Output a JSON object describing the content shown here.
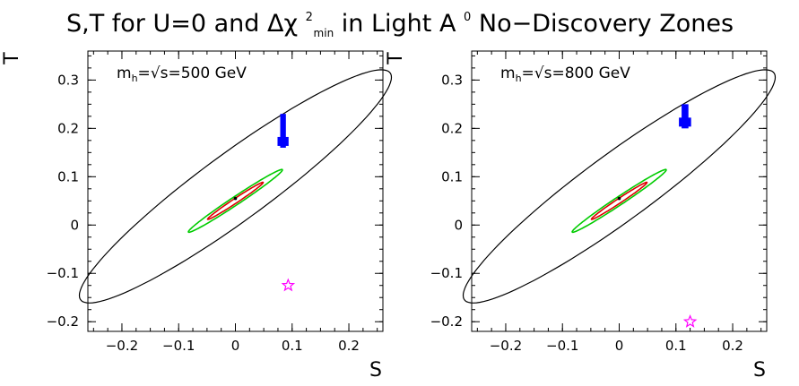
{
  "figure": {
    "title_main": "S,T for U=0 and Δχ",
    "title_sup": "2",
    "title_sub": "min",
    "title_rest": " in Light A",
    "title_sup2": "0",
    "title_end": " No−Discovery Zones"
  },
  "chart_data": [
    {
      "type": "scatter",
      "annotation": {
        "prefix": "m",
        "subscript": "h",
        "rest": "=√s=500 GeV"
      },
      "xlabel": "S",
      "ylabel": "T",
      "xlim": [
        -0.26,
        0.26
      ],
      "ylim": [
        -0.22,
        0.36
      ],
      "xticks": [
        -0.2,
        -0.1,
        0,
        0.1,
        0.2
      ],
      "xtick_labels": [
        "−0.2",
        "−0.1",
        "0",
        "0.1",
        "0.2"
      ],
      "yticks": [
        -0.2,
        -0.1,
        0,
        0.1,
        0.2,
        0.3
      ],
      "ytick_labels": [
        "−0.2",
        "−0.1",
        "0",
        "0.1",
        "0.2",
        "0.3"
      ],
      "grid": false,
      "ellipses": [
        {
          "name": "outer",
          "color": "#000000",
          "center": [
            0.0,
            0.08
          ],
          "semi_major": 0.36,
          "semi_minor": 0.065,
          "angle_deg": 41
        },
        {
          "name": "green",
          "color": "#00cc00",
          "center": [
            0.0,
            0.05
          ],
          "semi_major": 0.105,
          "semi_minor": 0.008,
          "angle_deg": 38
        },
        {
          "name": "red",
          "color": "#dd0000",
          "center": [
            0.0,
            0.05
          ],
          "semi_major": 0.062,
          "semi_minor": 0.0045,
          "angle_deg": 38
        }
      ],
      "center_point": [
        0.0,
        0.055
      ],
      "blue_band": {
        "color": "#0000ff",
        "x": [
          0.079,
          0.089
        ],
        "y": [
          0.16,
          0.23
        ]
      },
      "star": {
        "color": "#ff00ff",
        "x": 0.093,
        "y": -0.125
      }
    },
    {
      "type": "scatter",
      "annotation": {
        "prefix": "m",
        "subscript": "h",
        "rest": "=√s=800 GeV"
      },
      "xlabel": "S",
      "ylabel": "T",
      "xlim": [
        -0.26,
        0.26
      ],
      "ylim": [
        -0.22,
        0.36
      ],
      "xticks": [
        -0.2,
        -0.1,
        0,
        0.1,
        0.2
      ],
      "xtick_labels": [
        "−0.2",
        "−0.1",
        "0",
        "0.1",
        "0.2"
      ],
      "yticks": [
        -0.2,
        -0.1,
        0,
        0.1,
        0.2,
        0.3
      ],
      "ytick_labels": [
        "−0.2",
        "−0.1",
        "0",
        "0.1",
        "0.2",
        "0.3"
      ],
      "grid": false,
      "ellipses": [
        {
          "name": "outer",
          "color": "#000000",
          "center": [
            0.0,
            0.08
          ],
          "semi_major": 0.36,
          "semi_minor": 0.065,
          "angle_deg": 41
        },
        {
          "name": "green",
          "color": "#00cc00",
          "center": [
            0.0,
            0.05
          ],
          "semi_major": 0.105,
          "semi_minor": 0.008,
          "angle_deg": 38
        },
        {
          "name": "red",
          "color": "#dd0000",
          "center": [
            0.0,
            0.05
          ],
          "semi_major": 0.062,
          "semi_minor": 0.0045,
          "angle_deg": 38
        }
      ],
      "center_point": [
        0.0,
        0.055
      ],
      "blue_band": {
        "color": "#0000ff",
        "x": [
          0.11,
          0.122
        ],
        "y": [
          0.2,
          0.25
        ]
      },
      "star": {
        "color": "#ff00ff",
        "x": 0.125,
        "y": -0.2
      }
    }
  ]
}
